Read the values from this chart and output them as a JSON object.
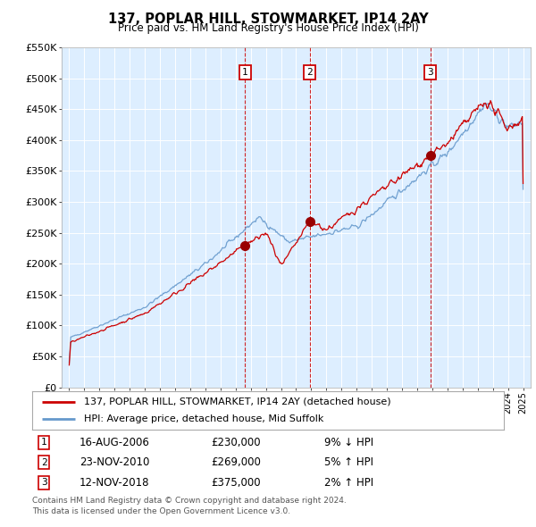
{
  "title": "137, POPLAR HILL, STOWMARKET, IP14 2AY",
  "subtitle": "Price paid vs. HM Land Registry's House Price Index (HPI)",
  "legend_line1": "137, POPLAR HILL, STOWMARKET, IP14 2AY (detached house)",
  "legend_line2": "HPI: Average price, detached house, Mid Suffolk",
  "transactions": [
    {
      "num": 1,
      "date": "16-AUG-2006",
      "date_dec": 2006.62,
      "price": 230000,
      "rel": "9% ↓ HPI"
    },
    {
      "num": 2,
      "date": "23-NOV-2010",
      "date_dec": 2010.9,
      "price": 269000,
      "rel": "5% ↑ HPI"
    },
    {
      "num": 3,
      "date": "12-NOV-2018",
      "date_dec": 2018.87,
      "price": 375000,
      "rel": "2% ↑ HPI"
    }
  ],
  "footer": "Contains HM Land Registry data © Crown copyright and database right 2024.\nThis data is licensed under the Open Government Licence v3.0.",
  "hpi_color": "#6699cc",
  "price_color": "#cc0000",
  "vline_color": "#cc0000",
  "plot_bg": "#ddeeff",
  "ylim": [
    0,
    550000
  ],
  "xlim_start": 1994.5,
  "xlim_end": 2025.5,
  "yticks": [
    0,
    50000,
    100000,
    150000,
    200000,
    250000,
    300000,
    350000,
    400000,
    450000,
    500000,
    550000
  ]
}
